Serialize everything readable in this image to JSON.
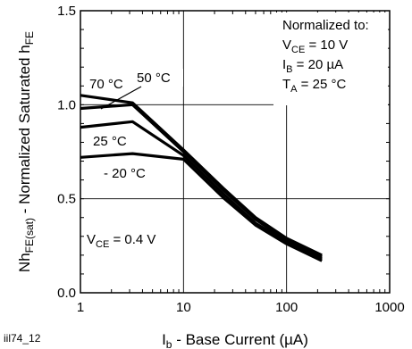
{
  "figure_id": "iil74_12",
  "chart_data": {
    "type": "line",
    "xlabel": {
      "main": "I",
      "sub": "b",
      "rest": " - Base Current (µA)"
    },
    "ylabel": {
      "pre": "Nh",
      "sub1": "FE(sat)",
      "mid": " - Normalized Saturated h",
      "sub2": "FE"
    },
    "x_scale": "log",
    "xlim": [
      1,
      1000
    ],
    "ylim": [
      0,
      1.5
    ],
    "grid": true,
    "x_ticks": [
      {
        "value": 1,
        "label": "1"
      },
      {
        "value": 10,
        "label": "10"
      },
      {
        "value": 100,
        "label": "100"
      },
      {
        "value": 1000,
        "label": "1000"
      }
    ],
    "y_ticks": [
      {
        "value": 0.0,
        "label": "0.0"
      },
      {
        "value": 0.5,
        "label": "0.5"
      },
      {
        "value": 1.0,
        "label": "1.0"
      },
      {
        "value": 1.5,
        "label": "1.5"
      }
    ],
    "series": [
      {
        "name": "70 °C",
        "points": [
          [
            1,
            1.05
          ],
          [
            3.2,
            1.01
          ],
          [
            10,
            0.76
          ],
          [
            25,
            0.55
          ],
          [
            50,
            0.4
          ],
          [
            100,
            0.29
          ],
          [
            220,
            0.2
          ]
        ]
      },
      {
        "name": "50 °C",
        "points": [
          [
            1,
            0.98
          ],
          [
            3.2,
            1.0
          ],
          [
            10,
            0.75
          ],
          [
            25,
            0.54
          ],
          [
            50,
            0.39
          ],
          [
            100,
            0.28
          ],
          [
            220,
            0.19
          ]
        ]
      },
      {
        "name": "25 °C",
        "points": [
          [
            1,
            0.88
          ],
          [
            3.2,
            0.91
          ],
          [
            10,
            0.73
          ],
          [
            25,
            0.52
          ],
          [
            50,
            0.37
          ],
          [
            100,
            0.27
          ],
          [
            220,
            0.18
          ]
        ]
      },
      {
        "name": "- 20 °C",
        "points": [
          [
            1,
            0.72
          ],
          [
            3.2,
            0.74
          ],
          [
            10,
            0.71
          ],
          [
            25,
            0.5
          ],
          [
            50,
            0.36
          ],
          [
            100,
            0.26
          ],
          [
            220,
            0.17
          ]
        ]
      }
    ],
    "annotations": {
      "normalized_title": "Normalized to:",
      "conditions": [
        {
          "pre": "V",
          "sub": "CE",
          "rest": " = 10 V"
        },
        {
          "pre": "I",
          "sub": "B",
          "rest": " = 20 µA"
        },
        {
          "pre": "T",
          "sub": "A",
          "rest": " = 25 °C"
        }
      ],
      "vce_label": {
        "pre": "V",
        "sub": "CE",
        "rest": " = 0.4 V"
      }
    }
  }
}
